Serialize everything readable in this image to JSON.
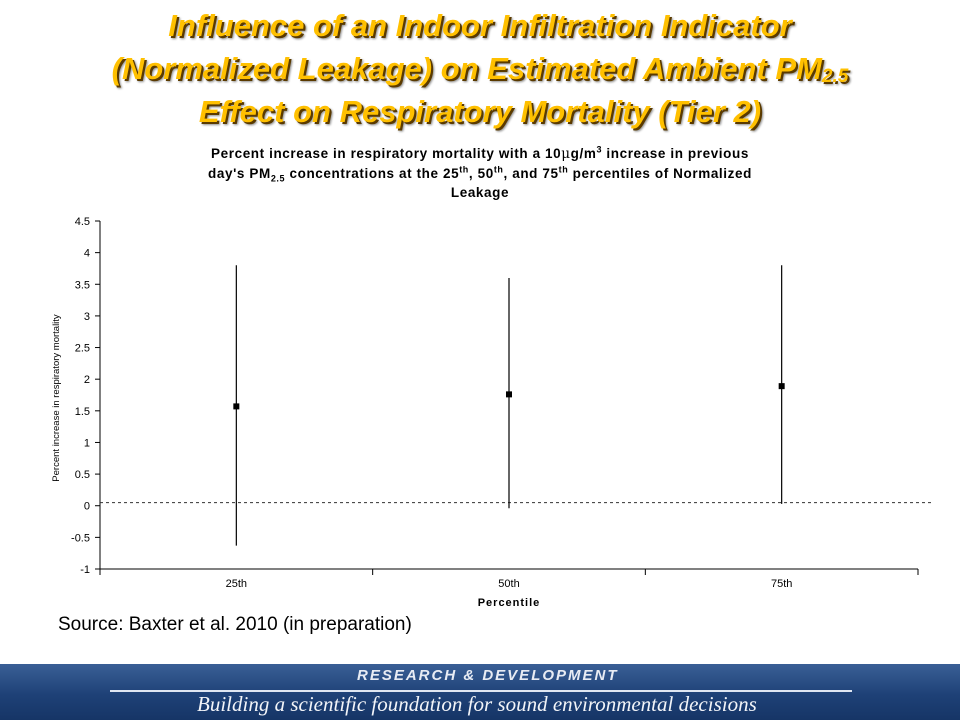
{
  "slide": {
    "title_line1": "Influence of an Indoor Infiltration Indicator",
    "title_line2_pre": "(Normalized Leakage) on Estimated Ambient PM",
    "title_line2_sub": "2.5",
    "title_line3": "Effect on Respiratory Mortality (Tier 2)",
    "title_color": "#ffc000"
  },
  "chart_title": {
    "line1_pre": "Percent increase in respiratory mortality with a 10",
    "line1_mu": "μ",
    "line1_unit": "g/m",
    "line1_sup": "3",
    "line1_post": " increase in previous",
    "line2_a": "day's PM",
    "line2_sub": "2.5",
    "line2_b": " concentrations at the 25",
    "line2_sup1": "th",
    "line2_c": ", 50",
    "line2_sup2": "th",
    "line2_d": ", and 75",
    "line2_sup3": "th",
    "line2_e": " percentiles of Normalized",
    "line3": "Leakage"
  },
  "chart_data": {
    "type": "scatter",
    "categories": [
      "25th",
      "50th",
      "75th"
    ],
    "estimates": [
      1.57,
      1.76,
      1.89
    ],
    "lower": [
      -0.63,
      -0.04,
      0.03
    ],
    "upper": [
      3.8,
      3.6,
      3.8
    ],
    "xlabel": "Percentile",
    "ylabel": "Percent increase in respiratory mortality",
    "ylim": [
      -1,
      4.5
    ],
    "yticks": [
      "-1",
      "-0.5",
      "0",
      "0.5",
      "1",
      "1.5",
      "2",
      "2.5",
      "3",
      "3.5",
      "4",
      "4.5"
    ],
    "reference_line": 0.05,
    "grid": false
  },
  "source_text": "Source: Baxter et al. 2010 (in preparation)",
  "footer": {
    "heading": "RESEARCH & DEVELOPMENT",
    "tagline": "Building a scientific foundation for sound environmental decisions"
  }
}
